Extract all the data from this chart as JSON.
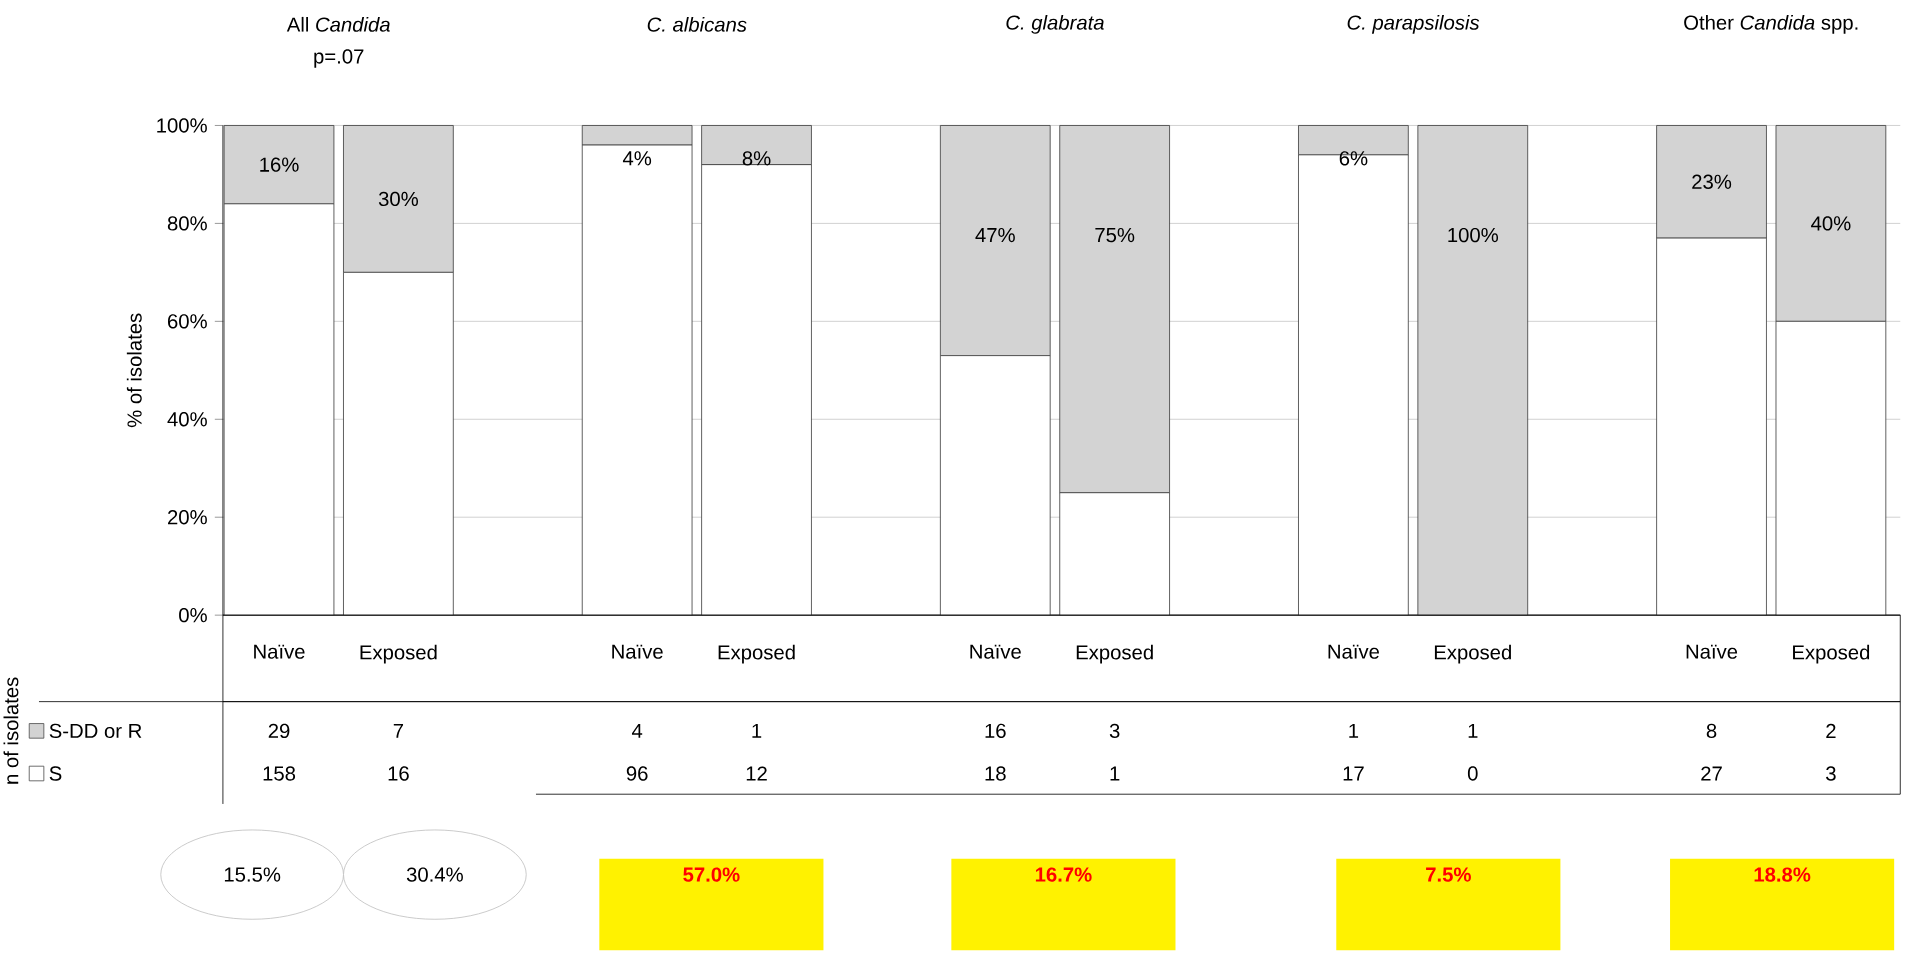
{
  "chart_data": {
    "type": "bar",
    "stacked": true,
    "ylabel": "% of isolates",
    "categories": [
      "Naïve",
      "Exposed",
      null,
      "Naïve",
      "Exposed",
      null,
      "Naïve",
      "Exposed",
      null,
      "Naïve",
      "Exposed",
      null,
      "Naïve",
      "Exposed"
    ],
    "series": [
      {
        "name": "S",
        "color": "#ffffff",
        "values": [
          84,
          70,
          null,
          96,
          92,
          null,
          53,
          25,
          null,
          94,
          0,
          null,
          77,
          60
        ]
      },
      {
        "name": "S-DD or R",
        "color": "#d3d3d3",
        "values": [
          16,
          30,
          null,
          4,
          8,
          null,
          47,
          75,
          null,
          6,
          100,
          null,
          23,
          40
        ],
        "value_labels": [
          "16%",
          "30%",
          null,
          "4%",
          "8%",
          null,
          "47%",
          "75%",
          null,
          "6%",
          "100%",
          null,
          "23%",
          "40%"
        ]
      }
    ],
    "ylim": [
      0,
      100
    ],
    "yticks": [
      {
        "value": 0,
        "label": "0%"
      },
      {
        "value": 20,
        "label": "20%"
      },
      {
        "value": 40,
        "label": "40%"
      },
      {
        "value": 60,
        "label": "60%"
      },
      {
        "value": 80,
        "label": "80%"
      },
      {
        "value": 100,
        "label": "100%"
      }
    ],
    "grid": "y",
    "legend": "bottom left",
    "annotations": [
      "All *Candida*",
      "*C. albicans*",
      "*C. glabrata*",
      "*C. parapsilosis*",
      "Other *Candida* spp.",
      "p=.07",
      "n of isolates",
      "29",
      "7",
      "4",
      "1",
      "16",
      "3",
      "1",
      "1",
      "8",
      "2",
      "158",
      "16",
      "96",
      "12",
      "18",
      "1",
      "17",
      "0",
      "27",
      "3",
      "15.5%",
      "30.4%",
      "57.0%",
      "16.7%",
      "7.5%",
      "18.8%"
    ]
  }
}
